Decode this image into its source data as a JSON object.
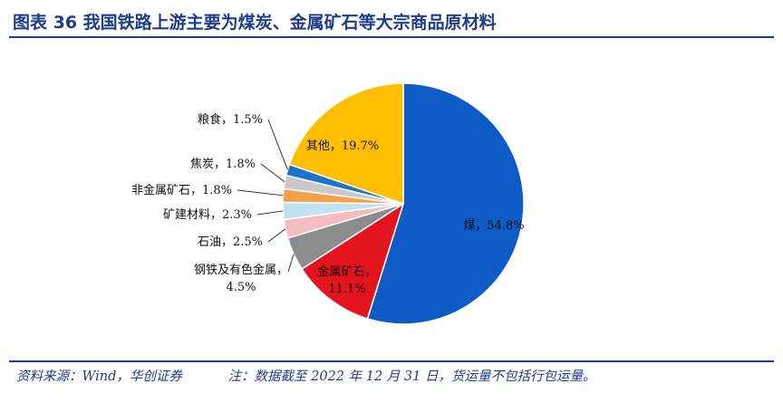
{
  "title": "图表 36   我国铁路上游主要为煤炭、金属矿石等大宗商品原材料",
  "footer": {
    "source": "资料来源：Wind，华创证券",
    "note": "注：数据截至 2022 年 12 月 31 日，货运量不包括行包运量。"
  },
  "chart_data": {
    "type": "pie",
    "title": "",
    "slices": [
      {
        "label": "煤",
        "value": 54.8,
        "display": "54.8%",
        "color": "#0e5bc6"
      },
      {
        "label": "金属矿石",
        "value": 11.1,
        "display": "11.1%",
        "color": "#e3141e"
      },
      {
        "label": "钢铁及有色金属",
        "value": 4.5,
        "display": "4.5%",
        "color": "#8c8c8c"
      },
      {
        "label": "石油",
        "value": 2.5,
        "display": "2.5%",
        "color": "#f4bcc0"
      },
      {
        "label": "矿建材料",
        "value": 2.3,
        "display": "2.3%",
        "color": "#bfe3f0"
      },
      {
        "label": "非金属矿石",
        "value": 1.8,
        "display": "1.8%",
        "color": "#f5a04a"
      },
      {
        "label": "焦炭",
        "value": 1.8,
        "display": "1.8%",
        "color": "#c8c8c8"
      },
      {
        "label": "粮食",
        "value": 1.5,
        "display": "1.5%",
        "color": "#1d73c9"
      },
      {
        "label": "其他",
        "value": 19.7,
        "display": "19.7%",
        "color": "#ffbf00"
      }
    ]
  }
}
